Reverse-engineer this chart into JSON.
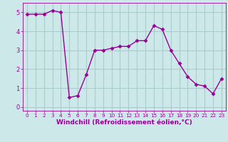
{
  "x": [
    0,
    1,
    2,
    3,
    4,
    5,
    6,
    7,
    8,
    9,
    10,
    11,
    12,
    13,
    14,
    15,
    16,
    17,
    18,
    19,
    20,
    21,
    22,
    23
  ],
  "y": [
    4.9,
    4.9,
    4.9,
    5.1,
    5.0,
    0.5,
    0.6,
    1.7,
    3.0,
    3.0,
    3.1,
    3.2,
    3.2,
    3.5,
    3.5,
    4.3,
    4.1,
    3.0,
    2.3,
    1.6,
    1.2,
    1.1,
    0.7,
    1.5
  ],
  "line_color": "#990099",
  "marker": "D",
  "markersize": 2.5,
  "linewidth": 1.0,
  "bg_color": "#cce8e8",
  "grid_color": "#aacccc",
  "xlabel": "Windchill (Refroidissement éolien,°C)",
  "xlabel_fontsize": 6.5,
  "tick_fontsize": 6.0,
  "ylim": [
    -0.2,
    5.5
  ],
  "xlim": [
    -0.5,
    23.5
  ],
  "yticks": [
    0,
    1,
    2,
    3,
    4,
    5
  ],
  "xticks": [
    0,
    1,
    2,
    3,
    4,
    5,
    6,
    7,
    8,
    9,
    10,
    11,
    12,
    13,
    14,
    15,
    16,
    17,
    18,
    19,
    20,
    21,
    22,
    23
  ]
}
